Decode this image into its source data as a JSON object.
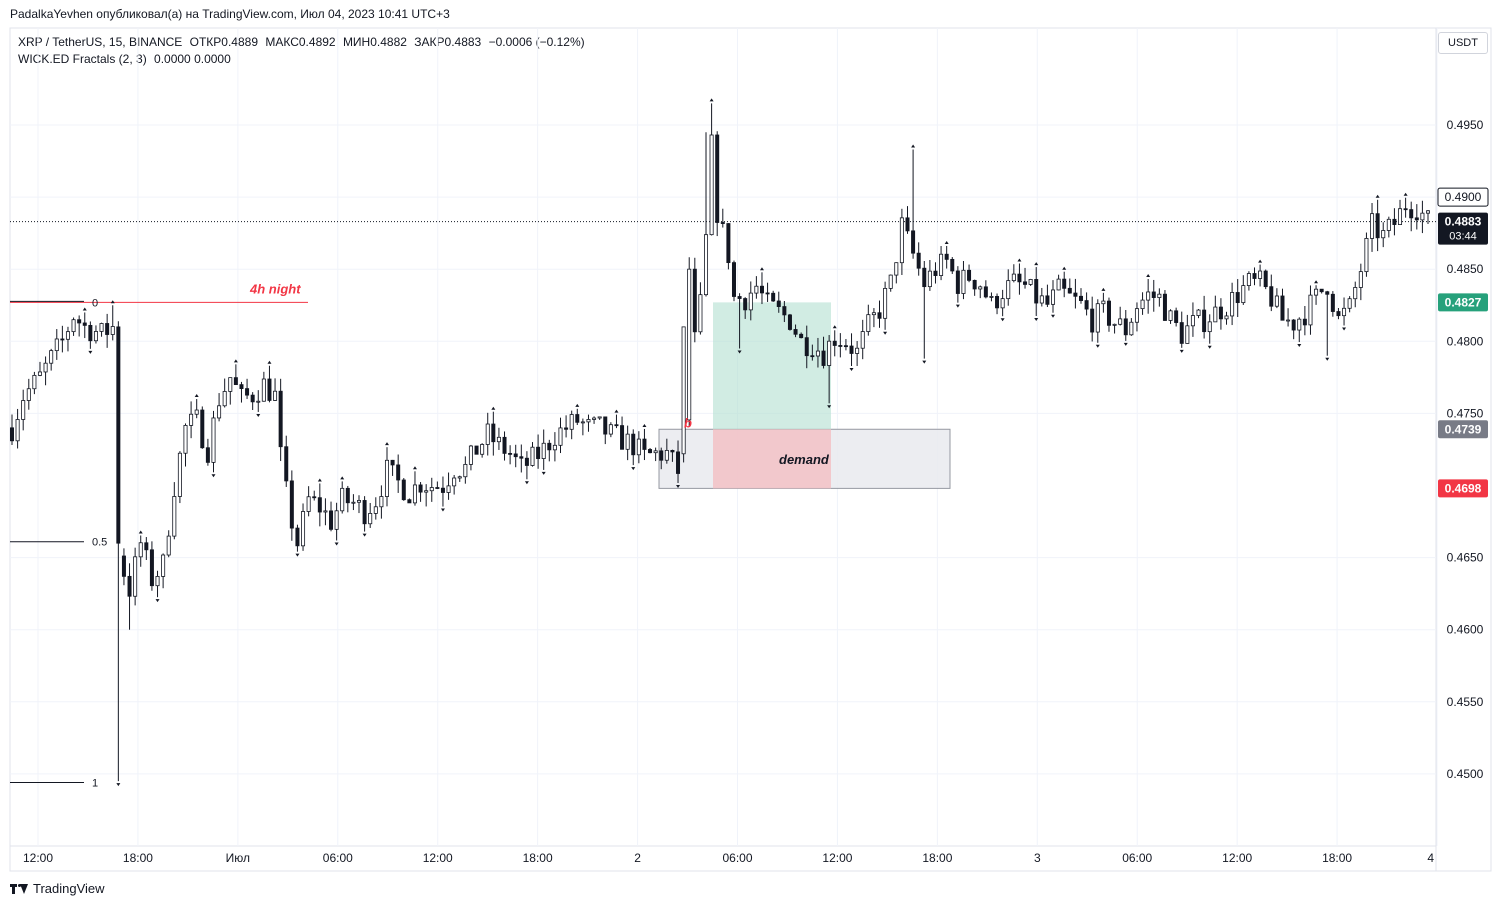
{
  "header": {
    "publish_line": "PadalkaYevhen опубликовал(а) на TradingView.com, Июл 04, 2023 10:41 UTC+3",
    "symbol": "XRP / TetherUS, 15, BINANCE",
    "open": "ОТКР0.4889",
    "high": "МАКС0.4892",
    "low": "МИН0.4882",
    "close": "ЗАКР0.4883",
    "change": "−0.0006 (−0.12%)",
    "indicator": "WICK.ED Fractals (2, 3)",
    "indicator_values": "0.0000  0.0000"
  },
  "currency_button": "USDT",
  "footer": {
    "brand": "TradingView",
    "logo_icon": "tradingview-logo-icon"
  },
  "chart_data": {
    "type": "candlestick",
    "title": "XRP / TetherUS, 15, BINANCE",
    "price_axis": {
      "ticks": [
        "0.4950",
        "0.4900",
        "0.4850",
        "0.4800",
        "0.4750",
        "0.4650",
        "0.4600",
        "0.4550",
        "0.4500"
      ],
      "ylim": [
        0.444,
        0.502
      ]
    },
    "time_axis": {
      "ticks": [
        "12:00",
        "18:00",
        "Июл",
        "06:00",
        "12:00",
        "18:00",
        "2",
        "06:00",
        "12:00",
        "18:00",
        "3",
        "06:00",
        "12:00",
        "18:00",
        "4"
      ]
    },
    "price_labels": [
      {
        "text": "0.4900",
        "style": "outlined",
        "price": 0.49
      },
      {
        "text": "0.4883",
        "sub": "03:44",
        "style": "current",
        "color": "#131722",
        "price": 0.4883
      },
      {
        "text": "0.4827",
        "style": "zone-top",
        "color": "#26a17b",
        "price": 0.4827
      },
      {
        "text": "0.4739",
        "style": "zone",
        "color": "#787b86",
        "price": 0.4739
      },
      {
        "text": "0.4698",
        "style": "zone-bottom",
        "color": "#f23645",
        "price": 0.4698
      }
    ],
    "current_price": 0.4883,
    "fib_levels": [
      {
        "label": "0",
        "price": 0.4827,
        "color": "#f23645"
      },
      {
        "label": "0.5",
        "price": 0.4661,
        "color": "#131722"
      },
      {
        "label": "1",
        "price": 0.4494,
        "color": "#131722"
      }
    ],
    "annotations": [
      {
        "text": "4h night",
        "color": "#f23645"
      },
      {
        "text": "b",
        "color": "#f23645"
      },
      {
        "text": "demand",
        "color": "#131722"
      }
    ],
    "zones": [
      {
        "name": "demand-zone",
        "top": 0.4739,
        "bottom": 0.4698,
        "color": "#e9eaef"
      },
      {
        "name": "long-target",
        "top": 0.4827,
        "bottom": 0.4739,
        "color": "#b2dfd1"
      },
      {
        "name": "long-stop",
        "top": 0.4739,
        "bottom": 0.4698,
        "color": "#f3c1c6"
      }
    ],
    "price_path": [
      [
        0,
        0.474
      ],
      [
        2,
        0.4762
      ],
      [
        5,
        0.4775
      ],
      [
        7,
        0.4788
      ],
      [
        9,
        0.48
      ],
      [
        11,
        0.4818
      ],
      [
        13,
        0.481
      ],
      [
        16,
        0.4805
      ],
      [
        18,
        0.481
      ],
      [
        19,
        0.4655
      ],
      [
        20,
        0.464
      ],
      [
        21,
        0.4628
      ],
      [
        23,
        0.466
      ],
      [
        25,
        0.4635
      ],
      [
        27,
        0.4645
      ],
      [
        29,
        0.47
      ],
      [
        31,
        0.474
      ],
      [
        33,
        0.4745
      ],
      [
        35,
        0.4725
      ],
      [
        37,
        0.476
      ],
      [
        39,
        0.4775
      ],
      [
        41,
        0.476
      ],
      [
        43,
        0.4763
      ],
      [
        45,
        0.477
      ],
      [
        47,
        0.4762
      ],
      [
        48,
        0.472
      ],
      [
        49,
        0.4695
      ],
      [
        50,
        0.4675
      ],
      [
        51,
        0.466
      ],
      [
        53,
        0.469
      ],
      [
        55,
        0.4685
      ],
      [
        57,
        0.4675
      ],
      [
        59,
        0.469
      ],
      [
        61,
        0.4688
      ],
      [
        63,
        0.4682
      ],
      [
        65,
        0.469
      ],
      [
        67,
        0.471
      ],
      [
        69,
        0.4702
      ],
      [
        71,
        0.4695
      ],
      [
        73,
        0.4702
      ],
      [
        75,
        0.47
      ],
      [
        77,
        0.47
      ],
      [
        79,
        0.4712
      ],
      [
        81,
        0.4712
      ],
      [
        83,
        0.4725
      ],
      [
        85,
        0.4735
      ],
      [
        87,
        0.4728
      ],
      [
        89,
        0.4722
      ],
      [
        91,
        0.4712
      ],
      [
        93,
        0.4718
      ],
      [
        95,
        0.4725
      ],
      [
        97,
        0.4735
      ],
      [
        99,
        0.474
      ],
      [
        101,
        0.4745
      ],
      [
        103,
        0.474
      ],
      [
        105,
        0.474
      ],
      [
        107,
        0.4735
      ],
      [
        109,
        0.4732
      ],
      [
        111,
        0.4728
      ],
      [
        113,
        0.472
      ],
      [
        115,
        0.4722
      ],
      [
        117,
        0.4722
      ],
      [
        119,
        0.471
      ],
      [
        120,
        0.474
      ],
      [
        121,
        0.485
      ],
      [
        122,
        0.48
      ],
      [
        123,
        0.4825
      ],
      [
        124,
        0.487
      ],
      [
        125,
        0.4935
      ],
      [
        126,
        0.489
      ],
      [
        127,
        0.4875
      ],
      [
        128,
        0.486
      ],
      [
        129,
        0.483
      ],
      [
        131,
        0.483
      ],
      [
        133,
        0.4838
      ],
      [
        135,
        0.4825
      ],
      [
        137,
        0.482
      ],
      [
        139,
        0.4815
      ],
      [
        141,
        0.48
      ],
      [
        143,
        0.4798
      ],
      [
        145,
        0.4792
      ],
      [
        147,
        0.4803
      ],
      [
        149,
        0.48
      ],
      [
        151,
        0.4792
      ],
      [
        153,
        0.481
      ],
      [
        155,
        0.4822
      ],
      [
        157,
        0.484
      ],
      [
        159,
        0.488
      ],
      [
        161,
        0.486
      ],
      [
        163,
        0.484
      ],
      [
        165,
        0.485
      ],
      [
        167,
        0.4855
      ],
      [
        169,
        0.484
      ],
      [
        171,
        0.4845
      ],
      [
        173,
        0.484
      ],
      [
        175,
        0.4825
      ],
      [
        177,
        0.4835
      ],
      [
        179,
        0.484
      ],
      [
        181,
        0.4838
      ],
      [
        183,
        0.483
      ],
      [
        185,
        0.4825
      ],
      [
        187,
        0.4835
      ],
      [
        189,
        0.483
      ],
      [
        191,
        0.4825
      ],
      [
        193,
        0.4815
      ],
      [
        195,
        0.482
      ],
      [
        197,
        0.4813
      ],
      [
        199,
        0.4808
      ],
      [
        201,
        0.4825
      ],
      [
        203,
        0.4832
      ],
      [
        205,
        0.483
      ],
      [
        207,
        0.4815
      ],
      [
        209,
        0.4805
      ],
      [
        211,
        0.4812
      ],
      [
        213,
        0.4815
      ],
      [
        215,
        0.482
      ],
      [
        217,
        0.4825
      ],
      [
        219,
        0.4833
      ],
      [
        221,
        0.484
      ],
      [
        223,
        0.484
      ],
      [
        225,
        0.483
      ],
      [
        227,
        0.4815
      ],
      [
        229,
        0.4813
      ],
      [
        231,
        0.482
      ],
      [
        233,
        0.483
      ],
      [
        235,
        0.484
      ],
      [
        237,
        0.4815
      ],
      [
        239,
        0.4823
      ],
      [
        241,
        0.485
      ],
      [
        243,
        0.488
      ],
      [
        245,
        0.4873
      ],
      [
        247,
        0.4882
      ],
      [
        249,
        0.4895
      ],
      [
        251,
        0.4893
      ],
      [
        253,
        0.4883
      ]
    ]
  }
}
